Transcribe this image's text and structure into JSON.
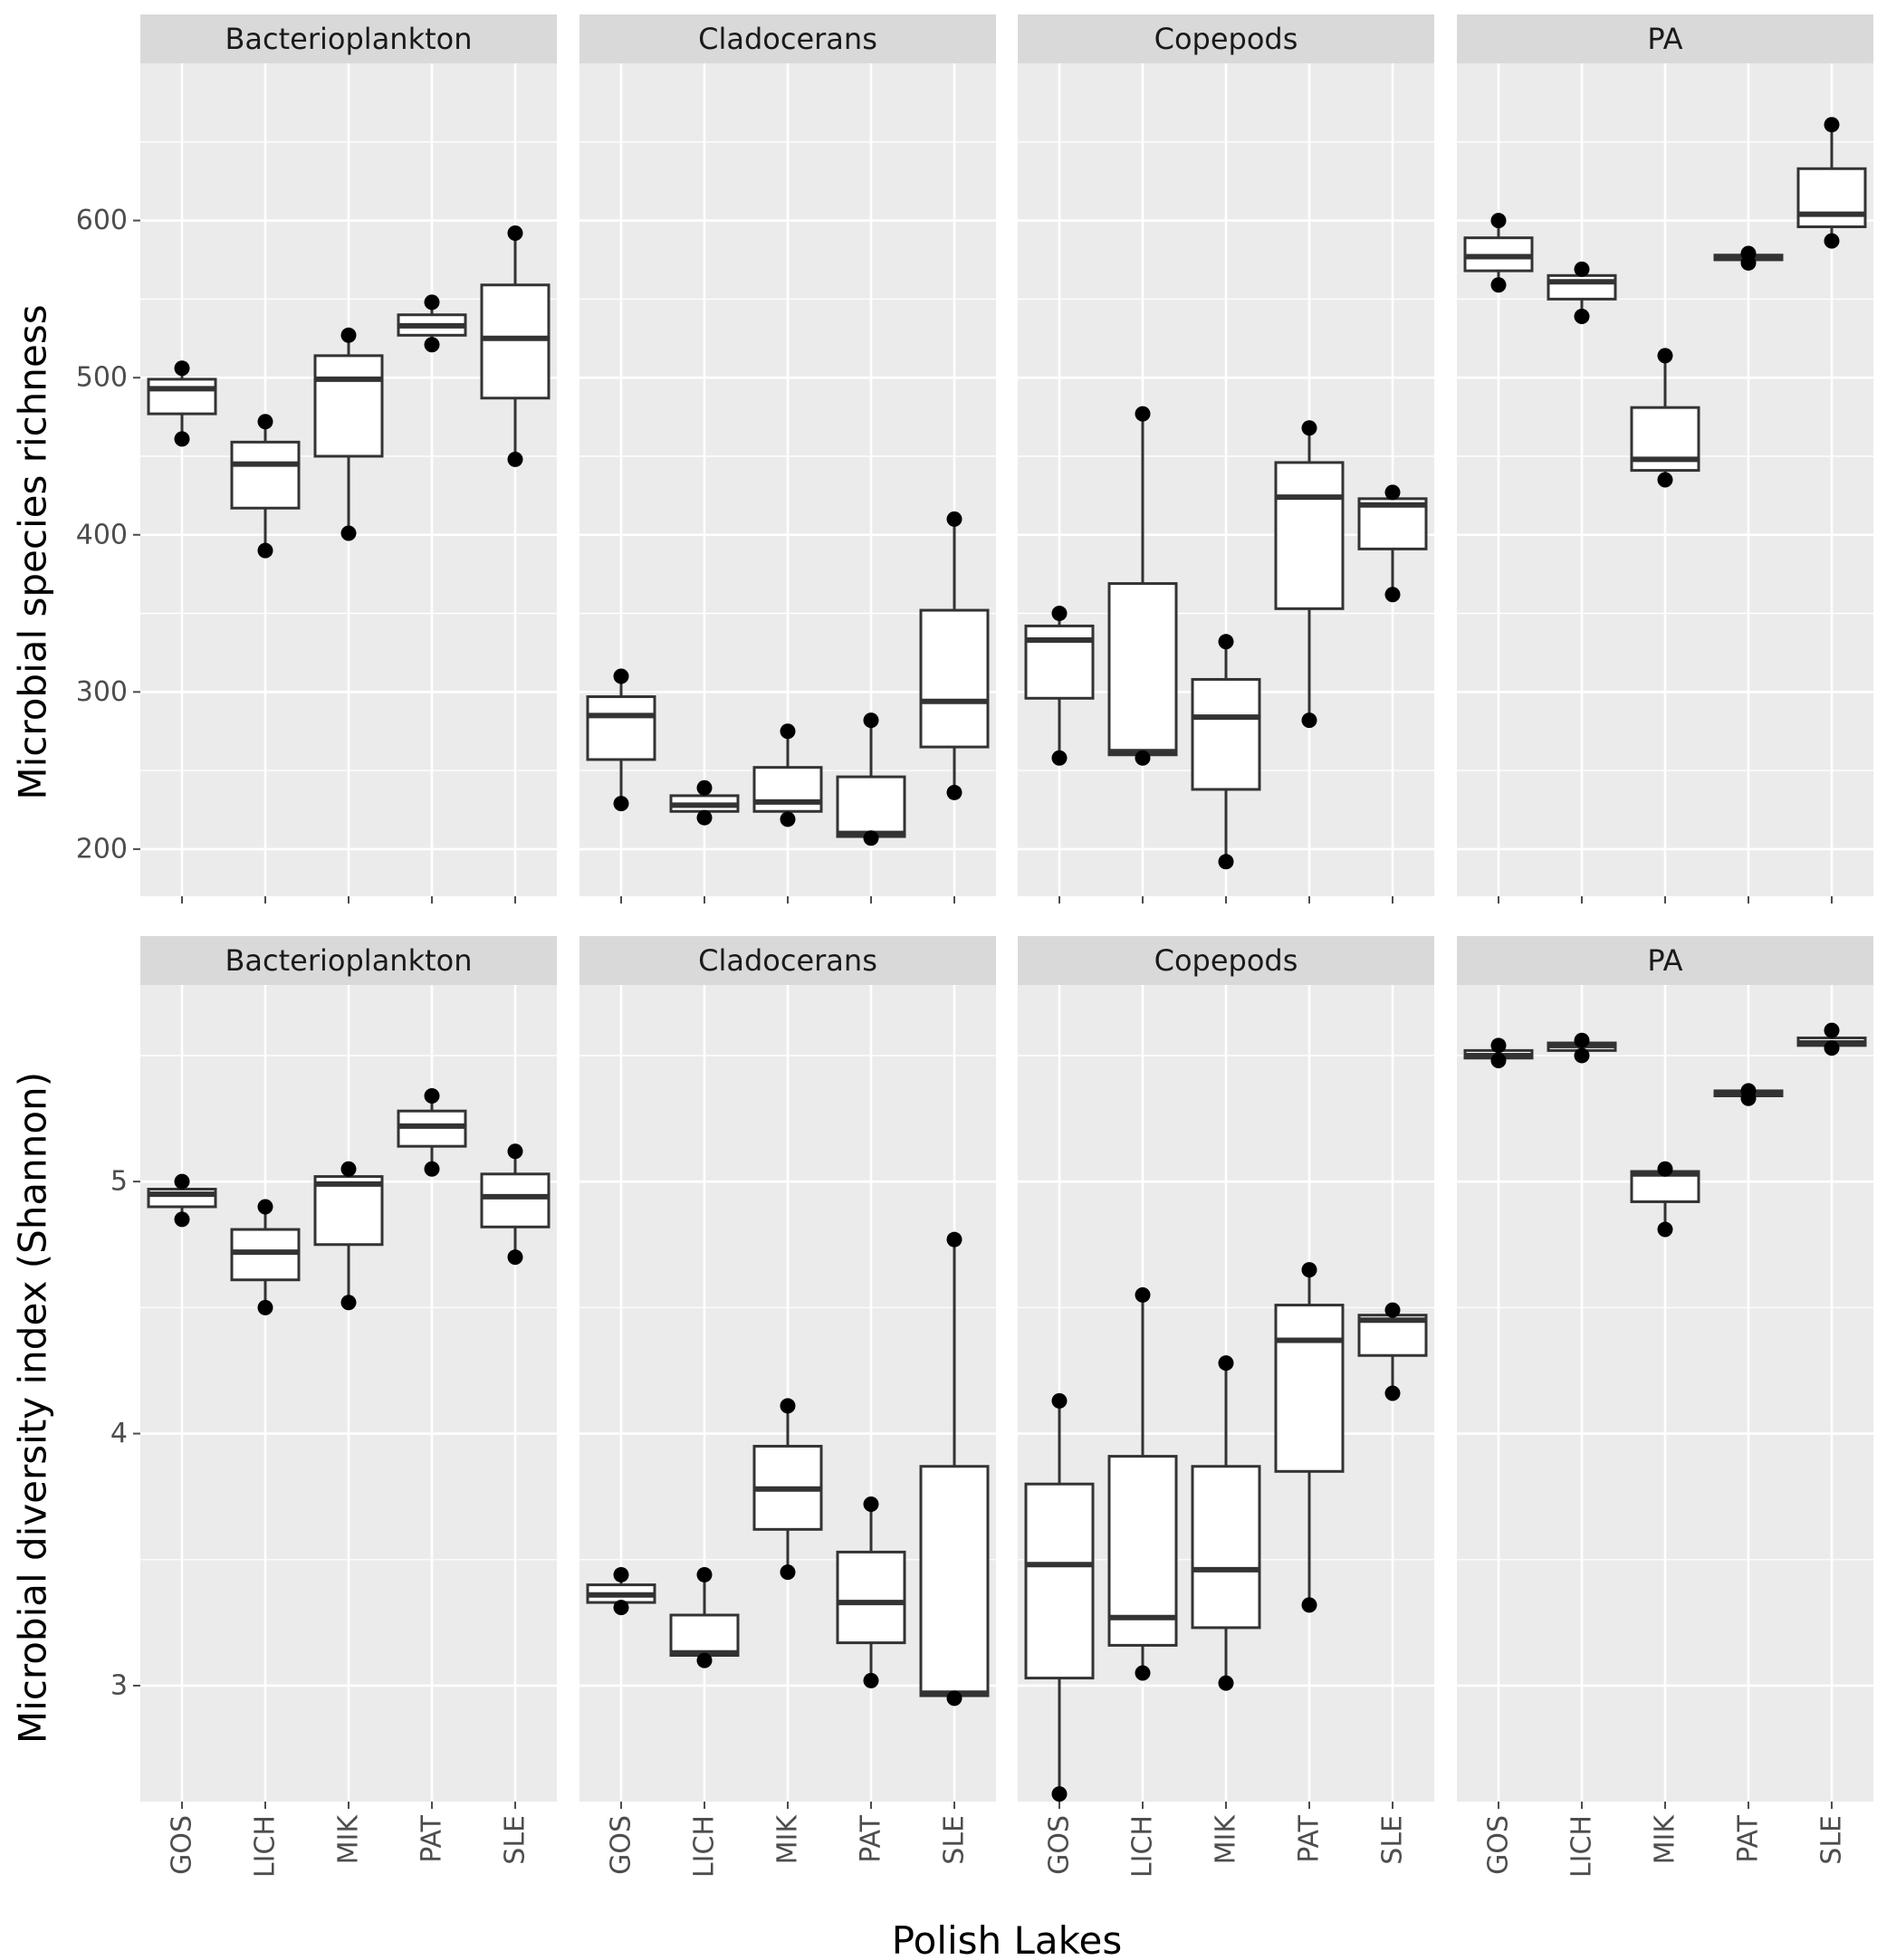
{
  "chart_data": {
    "type": "boxplot",
    "xlabel": "Polish Lakes",
    "facets": [
      "Bacterioplankton",
      "Cladocerans",
      "Copepods",
      "PA"
    ],
    "categories": [
      "GOS",
      "LICH",
      "MIK",
      "PAT",
      "SLE"
    ],
    "stat_fields": [
      "whisker_low",
      "q1",
      "median",
      "q3",
      "whisker_high",
      "points"
    ],
    "rows": [
      {
        "ylabel": "Microbial species richness",
        "ylim": [
          170,
          700
        ],
        "yticks": [
          200,
          300,
          400,
          500,
          600
        ],
        "ytick_labels": [
          "200",
          "300",
          "400",
          "500",
          "600"
        ],
        "panels": [
          {
            "facet": "Bacterioplankton",
            "boxes": [
              {
                "category": "GOS",
                "stats": [
                  461,
                  477,
                  493,
                  499,
                  506
                ],
                "points": [
                  461,
                  506
                ]
              },
              {
                "category": "LICH",
                "stats": [
                  390,
                  417,
                  445,
                  459,
                  472
                ],
                "points": [
                  390,
                  472
                ]
              },
              {
                "category": "MIK",
                "stats": [
                  401,
                  450,
                  499,
                  514,
                  527
                ],
                "points": [
                  401,
                  527
                ]
              },
              {
                "category": "PAT",
                "stats": [
                  521,
                  527,
                  533,
                  540,
                  548
                ],
                "points": [
                  521,
                  548
                ]
              },
              {
                "category": "SLE",
                "stats": [
                  448,
                  487,
                  525,
                  559,
                  592
                ],
                "points": [
                  448,
                  592
                ]
              }
            ]
          },
          {
            "facet": "Cladocerans",
            "boxes": [
              {
                "category": "GOS",
                "stats": [
                  229,
                  257,
                  285,
                  297,
                  310
                ],
                "points": [
                  229,
                  310
                ]
              },
              {
                "category": "LICH",
                "stats": [
                  220,
                  224,
                  228,
                  234,
                  239
                ],
                "points": [
                  220,
                  239
                ]
              },
              {
                "category": "MIK",
                "stats": [
                  219,
                  224,
                  230,
                  252,
                  275
                ],
                "points": [
                  219,
                  275
                ]
              },
              {
                "category": "PAT",
                "stats": [
                  207,
                  208,
                  210,
                  246,
                  282
                ],
                "points": [
                  207,
                  282
                ]
              },
              {
                "category": "SLE",
                "stats": [
                  236,
                  265,
                  294,
                  352,
                  410
                ],
                "points": [
                  236,
                  410
                ]
              }
            ]
          },
          {
            "facet": "Copepods",
            "boxes": [
              {
                "category": "GOS",
                "stats": [
                  258,
                  296,
                  333,
                  342,
                  350
                ],
                "points": [
                  258,
                  350
                ]
              },
              {
                "category": "LICH",
                "stats": [
                  258,
                  260,
                  262,
                  369,
                  477
                ],
                "points": [
                  258,
                  477
                ]
              },
              {
                "category": "MIK",
                "stats": [
                  192,
                  238,
                  284,
                  308,
                  332
                ],
                "points": [
                  192,
                  332
                ]
              },
              {
                "category": "PAT",
                "stats": [
                  282,
                  353,
                  424,
                  446,
                  468
                ],
                "points": [
                  282,
                  468
                ]
              },
              {
                "category": "SLE",
                "stats": [
                  362,
                  391,
                  419,
                  423,
                  427
                ],
                "points": [
                  362,
                  427
                ]
              }
            ]
          },
          {
            "facet": "PA",
            "boxes": [
              {
                "category": "GOS",
                "stats": [
                  559,
                  568,
                  577,
                  589,
                  600
                ],
                "points": [
                  559,
                  600
                ]
              },
              {
                "category": "LICH",
                "stats": [
                  539,
                  550,
                  561,
                  565,
                  569
                ],
                "points": [
                  539,
                  569
                ]
              },
              {
                "category": "MIK",
                "stats": [
                  435,
                  441,
                  448,
                  481,
                  514
                ],
                "points": [
                  435,
                  514
                ]
              },
              {
                "category": "PAT",
                "stats": [
                  573,
                  575,
                  577,
                  578,
                  579
                ],
                "points": [
                  573,
                  579
                ]
              },
              {
                "category": "SLE",
                "stats": [
                  587,
                  596,
                  604,
                  633,
                  661
                ],
                "points": [
                  587,
                  661
                ]
              }
            ]
          }
        ]
      },
      {
        "ylabel": "Microbial diversity index (Shannon)",
        "ylim": [
          2.54,
          5.78
        ],
        "yticks": [
          3,
          4,
          5
        ],
        "ytick_labels": [
          "3",
          "4",
          "5"
        ],
        "panels": [
          {
            "facet": "Bacterioplankton",
            "boxes": [
              {
                "category": "GOS",
                "stats": [
                  4.85,
                  4.9,
                  4.95,
                  4.97,
                  5.0
                ],
                "points": [
                  4.85,
                  5.0
                ]
              },
              {
                "category": "LICH",
                "stats": [
                  4.5,
                  4.61,
                  4.72,
                  4.81,
                  4.9
                ],
                "points": [
                  4.5,
                  4.9
                ]
              },
              {
                "category": "MIK",
                "stats": [
                  4.52,
                  4.75,
                  4.99,
                  5.02,
                  5.05
                ],
                "points": [
                  4.52,
                  5.05
                ]
              },
              {
                "category": "PAT",
                "stats": [
                  5.05,
                  5.14,
                  5.22,
                  5.28,
                  5.34
                ],
                "points": [
                  5.05,
                  5.34
                ]
              },
              {
                "category": "SLE",
                "stats": [
                  4.7,
                  4.82,
                  4.94,
                  5.03,
                  5.12
                ],
                "points": [
                  4.7,
                  5.12
                ]
              }
            ]
          },
          {
            "facet": "Cladocerans",
            "boxes": [
              {
                "category": "GOS",
                "stats": [
                  3.31,
                  3.33,
                  3.36,
                  3.4,
                  3.44
                ],
                "points": [
                  3.31,
                  3.44
                ]
              },
              {
                "category": "LICH",
                "stats": [
                  3.1,
                  3.12,
                  3.13,
                  3.28,
                  3.44
                ],
                "points": [
                  3.1,
                  3.44
                ]
              },
              {
                "category": "MIK",
                "stats": [
                  3.45,
                  3.62,
                  3.78,
                  3.95,
                  4.11
                ],
                "points": [
                  3.45,
                  4.11
                ]
              },
              {
                "category": "PAT",
                "stats": [
                  3.02,
                  3.17,
                  3.33,
                  3.53,
                  3.72
                ],
                "points": [
                  3.02,
                  3.72
                ]
              },
              {
                "category": "SLE",
                "stats": [
                  2.95,
                  2.96,
                  2.97,
                  3.87,
                  4.77
                ],
                "points": [
                  2.95,
                  4.77
                ]
              }
            ]
          },
          {
            "facet": "Copepods",
            "boxes": [
              {
                "category": "GOS",
                "stats": [
                  2.57,
                  3.03,
                  3.48,
                  3.8,
                  4.13
                ],
                "points": [
                  2.57,
                  4.13
                ]
              },
              {
                "category": "LICH",
                "stats": [
                  3.05,
                  3.16,
                  3.27,
                  3.91,
                  4.55
                ],
                "points": [
                  3.05,
                  4.55
                ]
              },
              {
                "category": "MIK",
                "stats": [
                  3.01,
                  3.23,
                  3.46,
                  3.87,
                  4.28
                ],
                "points": [
                  3.01,
                  4.28
                ]
              },
              {
                "category": "PAT",
                "stats": [
                  3.32,
                  3.85,
                  4.37,
                  4.51,
                  4.65
                ],
                "points": [
                  3.32,
                  4.65
                ]
              },
              {
                "category": "SLE",
                "stats": [
                  4.16,
                  4.31,
                  4.45,
                  4.47,
                  4.49
                ],
                "points": [
                  4.16,
                  4.49
                ]
              }
            ]
          },
          {
            "facet": "PA",
            "boxes": [
              {
                "category": "GOS",
                "stats": [
                  5.48,
                  5.49,
                  5.5,
                  5.52,
                  5.54
                ],
                "points": [
                  5.48,
                  5.54
                ]
              },
              {
                "category": "LICH",
                "stats": [
                  5.5,
                  5.52,
                  5.54,
                  5.55,
                  5.56
                ],
                "points": [
                  5.5,
                  5.56
                ]
              },
              {
                "category": "MIK",
                "stats": [
                  4.81,
                  4.92,
                  5.03,
                  5.04,
                  5.05
                ],
                "points": [
                  4.81,
                  5.05
                ]
              },
              {
                "category": "PAT",
                "stats": [
                  5.33,
                  5.34,
                  5.35,
                  5.36,
                  5.36
                ],
                "points": [
                  5.33,
                  5.36
                ]
              },
              {
                "category": "SLE",
                "stats": [
                  5.53,
                  5.54,
                  5.55,
                  5.57,
                  5.6
                ],
                "points": [
                  5.53,
                  5.6
                ]
              }
            ]
          }
        ]
      }
    ]
  }
}
